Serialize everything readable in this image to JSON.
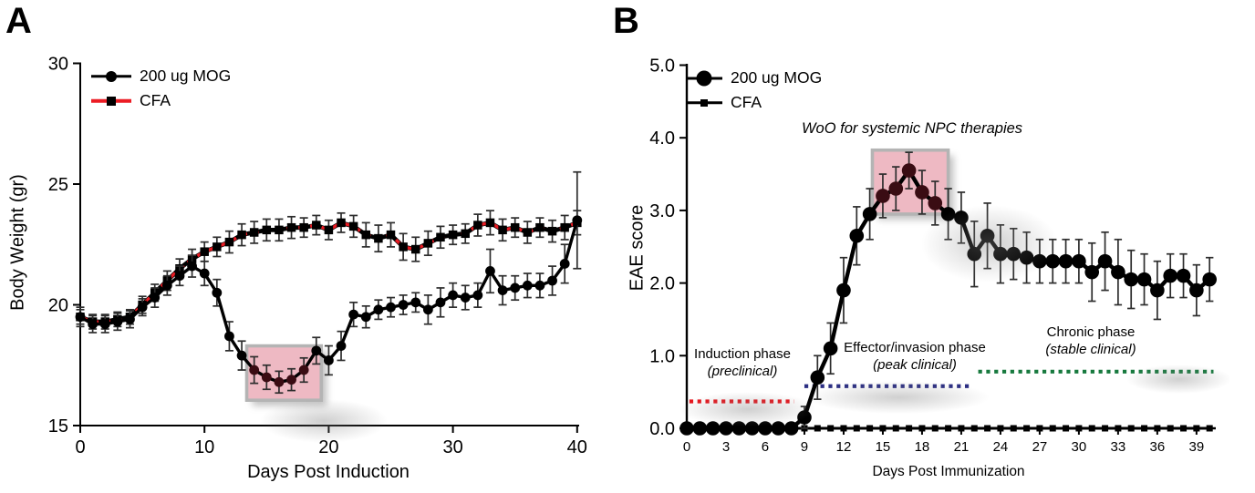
{
  "colors": {
    "mog_line": "#000000",
    "cfa_line_red": "#ec1c24",
    "highlight_fill": "#eeb9c3",
    "highlight_border": "#b4b4b4",
    "dark_marker": "#3a0c13",
    "induction_dotted": "#e8141c",
    "effector_dotted": "#2b2e83",
    "chronic_dotted": "#17793e",
    "error_bar": "#2d2d2d"
  },
  "chart_data": [
    {
      "type": "line",
      "panel": "A",
      "xlabel": "Days Post Induction",
      "ylabel": "Body Weight (gr)",
      "xlim": [
        0,
        41
      ],
      "ylim": [
        15,
        30
      ],
      "xticks": [
        0,
        10,
        20,
        30,
        40
      ],
      "yticks": [
        15,
        20,
        25,
        30
      ],
      "legend_position": "top-left",
      "grid": false,
      "x": [
        0,
        1,
        2,
        3,
        4,
        5,
        6,
        7,
        8,
        9,
        10,
        11,
        12,
        13,
        14,
        15,
        16,
        17,
        18,
        19,
        20,
        21,
        22,
        23,
        24,
        25,
        26,
        27,
        28,
        29,
        30,
        31,
        32,
        33,
        34,
        35,
        36,
        37,
        38,
        39,
        40
      ],
      "series": [
        {
          "name": "200 ug MOG",
          "marker": "circle",
          "color": "#000000",
          "line": "solid",
          "dark_days": [
            14,
            15,
            16,
            17,
            18
          ],
          "values": [
            19.5,
            19.2,
            19.2,
            19.3,
            19.4,
            19.9,
            20.3,
            20.8,
            21.2,
            21.6,
            21.3,
            20.5,
            18.7,
            17.9,
            17.3,
            17.0,
            16.8,
            16.9,
            17.3,
            18.1,
            17.7,
            18.3,
            19.6,
            19.5,
            19.8,
            19.9,
            20.0,
            20.1,
            19.8,
            20.1,
            20.4,
            20.3,
            20.4,
            21.4,
            20.6,
            20.7,
            20.8,
            20.8,
            21.0,
            21.7,
            23.5
          ],
          "errors": [
            0.4,
            0.35,
            0.35,
            0.35,
            0.35,
            0.35,
            0.4,
            0.4,
            0.4,
            0.45,
            0.5,
            0.55,
            0.6,
            0.6,
            0.55,
            0.5,
            0.45,
            0.45,
            0.5,
            0.55,
            0.6,
            0.6,
            0.5,
            0.45,
            0.4,
            0.4,
            0.4,
            0.4,
            0.6,
            0.6,
            0.5,
            0.5,
            0.5,
            0.9,
            0.6,
            0.5,
            0.5,
            0.5,
            0.6,
            0.8,
            2.0
          ]
        },
        {
          "name": "CFA",
          "marker": "square",
          "color": "#000000",
          "line": "dashed-red",
          "line_color": "#ec1c24",
          "values": [
            19.5,
            19.3,
            19.3,
            19.4,
            19.5,
            20.0,
            20.5,
            21.0,
            21.5,
            21.9,
            22.2,
            22.4,
            22.6,
            22.9,
            23.0,
            23.1,
            23.1,
            23.2,
            23.2,
            23.3,
            23.1,
            23.4,
            23.25,
            22.9,
            22.75,
            22.9,
            22.4,
            22.3,
            22.55,
            22.8,
            22.9,
            22.95,
            23.3,
            23.4,
            23.1,
            23.2,
            23.0,
            23.2,
            23.05,
            23.2,
            23.4
          ],
          "errors": [
            0.3,
            0.3,
            0.3,
            0.3,
            0.3,
            0.35,
            0.35,
            0.4,
            0.4,
            0.4,
            0.4,
            0.4,
            0.45,
            0.45,
            0.45,
            0.45,
            0.45,
            0.45,
            0.4,
            0.4,
            0.4,
            0.4,
            0.45,
            0.5,
            0.55,
            0.5,
            0.55,
            0.5,
            0.5,
            0.45,
            0.4,
            0.4,
            0.45,
            0.5,
            0.45,
            0.4,
            0.45,
            0.4,
            0.45,
            0.5,
            0.5
          ]
        }
      ],
      "highlight_box": {
        "x0": 13.4,
        "x1": 19.4,
        "y0": 16.05,
        "y1": 18.3
      }
    },
    {
      "type": "line",
      "panel": "B",
      "xlabel": "Days Post Immunization",
      "ylabel": "EAE score",
      "xlim": [
        0,
        40.5
      ],
      "ylim": [
        0,
        5
      ],
      "xticks": [
        0,
        3,
        6,
        9,
        12,
        15,
        18,
        21,
        24,
        27,
        30,
        33,
        36,
        39
      ],
      "yticks": [
        0,
        1,
        2,
        3,
        4,
        5
      ],
      "ytick_labels": [
        "0.0",
        "1.0",
        "2.0",
        "3.0",
        "4.0",
        "5.0"
      ],
      "legend_position": "top-left",
      "grid": false,
      "x": [
        0,
        1,
        2,
        3,
        4,
        5,
        6,
        7,
        8,
        9,
        10,
        11,
        12,
        13,
        14,
        15,
        16,
        17,
        18,
        19,
        20,
        21,
        22,
        23,
        24,
        25,
        26,
        27,
        28,
        29,
        30,
        31,
        32,
        33,
        34,
        35,
        36,
        37,
        38,
        39,
        40
      ],
      "series": [
        {
          "name": "200 ug MOG",
          "marker": "circle",
          "color": "#000000",
          "line": "solid",
          "dark_days": [
            15,
            16,
            17,
            18,
            19
          ],
          "values": [
            0,
            0,
            0,
            0,
            0,
            0,
            0,
            0,
            0,
            0.15,
            0.7,
            1.1,
            1.9,
            2.65,
            2.95,
            3.2,
            3.3,
            3.55,
            3.25,
            3.1,
            2.95,
            2.9,
            2.4,
            2.65,
            2.4,
            2.4,
            2.35,
            2.3,
            2.3,
            2.3,
            2.3,
            2.15,
            2.3,
            2.15,
            2.05,
            2.05,
            1.9,
            2.1,
            2.1,
            1.9,
            2.05
          ],
          "errors": [
            0,
            0,
            0,
            0,
            0,
            0,
            0,
            0,
            0,
            0.15,
            0.3,
            0.35,
            0.45,
            0.4,
            0.35,
            0.3,
            0.3,
            0.25,
            0.3,
            0.3,
            0.35,
            0.35,
            0.45,
            0.45,
            0.4,
            0.35,
            0.35,
            0.3,
            0.3,
            0.3,
            0.3,
            0.4,
            0.4,
            0.45,
            0.4,
            0.35,
            0.4,
            0.3,
            0.3,
            0.35,
            0.3
          ]
        },
        {
          "name": "CFA",
          "marker": "square",
          "color": "#000000",
          "line": "solid",
          "values": [
            0,
            0,
            0,
            0,
            0,
            0,
            0,
            0,
            0,
            0,
            0,
            0,
            0,
            0,
            0,
            0,
            0,
            0,
            0,
            0,
            0,
            0,
            0,
            0,
            0,
            0,
            0,
            0,
            0,
            0,
            0,
            0,
            0,
            0,
            0,
            0,
            0,
            0,
            0,
            0,
            0
          ],
          "errors": [
            0,
            0,
            0,
            0,
            0,
            0,
            0,
            0,
            0,
            0,
            0,
            0,
            0,
            0,
            0,
            0,
            0,
            0,
            0,
            0,
            0,
            0,
            0,
            0,
            0,
            0,
            0,
            0,
            0,
            0,
            0,
            0,
            0,
            0,
            0,
            0,
            0,
            0,
            0,
            0,
            0
          ]
        }
      ],
      "highlight_box": {
        "x0": 14.2,
        "x1": 20.0,
        "y0": 2.95,
        "y1": 3.83
      },
      "annotations": {
        "window_label": "WoO for systemic NPC therapies",
        "phases": [
          {
            "name": "Induction phase",
            "sub": "(preclinical)",
            "color": "#e8141c",
            "x0": 0.2,
            "x1": 8.2,
            "y": 0.37
          },
          {
            "name": "Effector/invasion phase",
            "sub": "(peak clinical)",
            "color": "#2b2e83",
            "x0": 9.0,
            "x1": 21.8,
            "y": 0.58
          },
          {
            "name": "Chronic phase",
            "sub": "(stable clinical)",
            "color": "#17793e",
            "x0": 22.3,
            "x1": 40.3,
            "y": 0.78
          }
        ]
      }
    }
  ]
}
